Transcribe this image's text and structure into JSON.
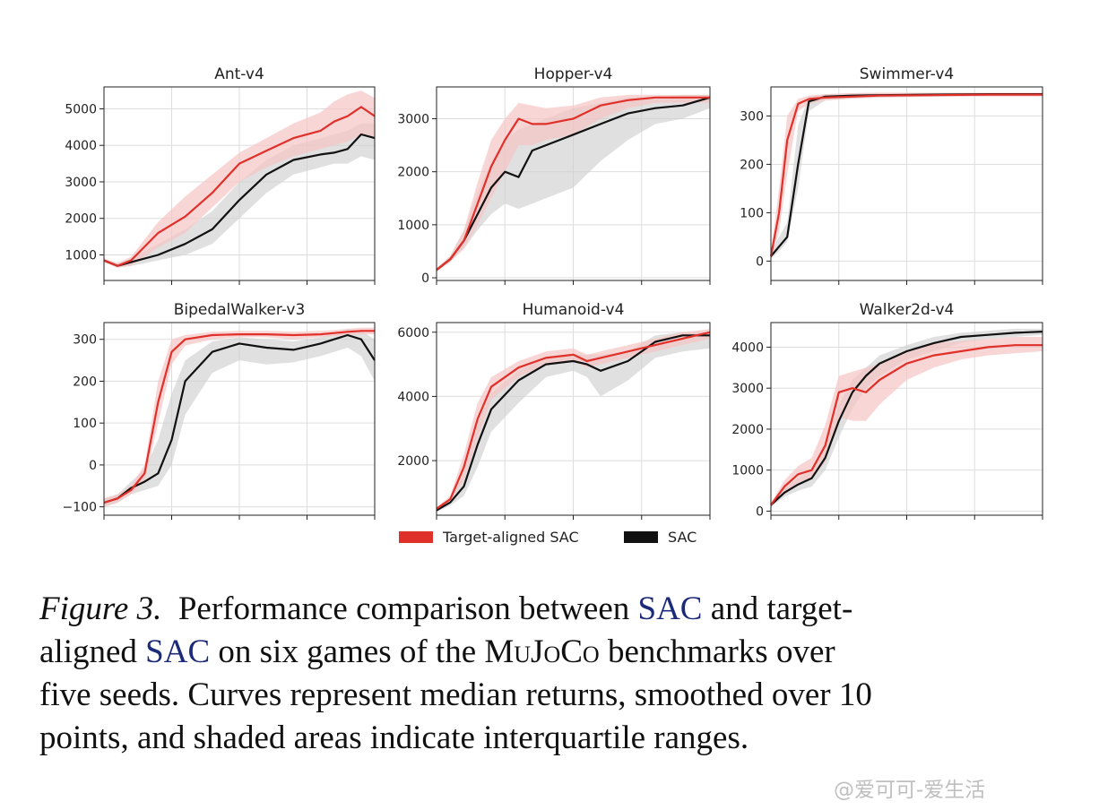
{
  "chart_data": [
    {
      "type": "line",
      "title": "Ant-v4",
      "xlabel": "",
      "ylabel": "",
      "ylim": [
        300,
        5600
      ],
      "yticks": [
        1000,
        2000,
        3000,
        4000,
        5000
      ],
      "ytick_labels": [
        "1000",
        "2000",
        "3000",
        "4000",
        "5000"
      ],
      "x": [
        0,
        0.05,
        0.1,
        0.2,
        0.3,
        0.4,
        0.5,
        0.6,
        0.7,
        0.8,
        0.85,
        0.9,
        0.95,
        1.0
      ],
      "series": [
        {
          "name": "Target-aligned SAC",
          "values": [
            850,
            700,
            850,
            1600,
            2050,
            2700,
            3500,
            3850,
            4200,
            4400,
            4650,
            4800,
            5050,
            4800
          ],
          "low": [
            800,
            650,
            700,
            1200,
            1600,
            2300,
            3000,
            3400,
            3700,
            3900,
            4000,
            4100,
            4300,
            4200
          ],
          "high": [
            900,
            780,
            950,
            1900,
            2600,
            3200,
            3800,
            4200,
            4600,
            4900,
            5200,
            5400,
            5500,
            5300
          ]
        },
        {
          "name": "SAC",
          "values": [
            850,
            700,
            800,
            1000,
            1300,
            1700,
            2500,
            3200,
            3600,
            3750,
            3800,
            3900,
            4300,
            4200
          ],
          "low": [
            800,
            650,
            700,
            850,
            1000,
            1300,
            2000,
            2700,
            3200,
            3400,
            3500,
            3500,
            3700,
            3600
          ],
          "high": [
            900,
            750,
            900,
            1300,
            1700,
            2200,
            3000,
            3600,
            4000,
            4200,
            4300,
            4400,
            4600,
            4600
          ]
        }
      ]
    },
    {
      "type": "line",
      "title": "Hopper-v4",
      "xlabel": "",
      "ylabel": "",
      "ylim": [
        -50,
        3600
      ],
      "yticks": [
        0,
        1000,
        2000,
        3000
      ],
      "ytick_labels": [
        "0",
        "1000",
        "2000",
        "3000"
      ],
      "x": [
        0,
        0.05,
        0.1,
        0.15,
        0.2,
        0.25,
        0.3,
        0.35,
        0.4,
        0.5,
        0.6,
        0.7,
        0.8,
        0.9,
        1.0
      ],
      "series": [
        {
          "name": "Target-aligned SAC",
          "values": [
            150,
            350,
            700,
            1400,
            2100,
            2600,
            3000,
            2900,
            2900,
            3000,
            3250,
            3350,
            3400,
            3400,
            3400
          ],
          "low": [
            120,
            300,
            550,
            1000,
            1500,
            2000,
            2500,
            2500,
            2600,
            2700,
            3000,
            3200,
            3300,
            3300,
            3300
          ],
          "high": [
            180,
            420,
            900,
            1800,
            2600,
            3000,
            3300,
            3250,
            3200,
            3250,
            3400,
            3450,
            3450,
            3450,
            3450
          ]
        },
        {
          "name": "SAC",
          "values": [
            150,
            350,
            700,
            1200,
            1700,
            2000,
            1900,
            2400,
            2500,
            2700,
            2900,
            3100,
            3200,
            3250,
            3400
          ],
          "low": [
            120,
            300,
            550,
            900,
            1200,
            1400,
            1300,
            1400,
            1500,
            1700,
            2200,
            2600,
            2900,
            3000,
            3200
          ],
          "high": [
            180,
            400,
            900,
            1600,
            2200,
            2600,
            2800,
            2900,
            3000,
            3200,
            3300,
            3400,
            3400,
            3450,
            3450
          ]
        }
      ]
    },
    {
      "type": "line",
      "title": "Swimmer-v4",
      "xlabel": "",
      "ylabel": "",
      "ylim": [
        -40,
        360
      ],
      "yticks": [
        0,
        100,
        200,
        300
      ],
      "ytick_labels": [
        "0",
        "100",
        "200",
        "300"
      ],
      "x": [
        0,
        0.03,
        0.06,
        0.1,
        0.14,
        0.2,
        0.3,
        0.4,
        0.6,
        0.8,
        1.0
      ],
      "series": [
        {
          "name": "Target-aligned SAC",
          "values": [
            10,
            100,
            250,
            325,
            335,
            338,
            340,
            342,
            343,
            344,
            344
          ],
          "low": [
            5,
            60,
            180,
            310,
            325,
            332,
            336,
            338,
            340,
            340,
            340
          ],
          "high": [
            20,
            150,
            300,
            335,
            342,
            345,
            347,
            348,
            348,
            348,
            348
          ]
        },
        {
          "name": "SAC",
          "values": [
            10,
            30,
            50,
            200,
            330,
            340,
            342,
            343,
            344,
            345,
            345
          ],
          "low": [
            5,
            20,
            40,
            150,
            310,
            332,
            336,
            338,
            340,
            341,
            341
          ],
          "high": [
            20,
            50,
            80,
            280,
            340,
            345,
            347,
            348,
            348,
            348,
            348
          ]
        }
      ]
    },
    {
      "type": "line",
      "title": "BipedalWalker-v3",
      "xlabel": "",
      "ylabel": "",
      "ylim": [
        -120,
        340
      ],
      "yticks": [
        -100,
        0,
        100,
        200,
        300
      ],
      "ytick_labels": [
        "−100",
        "0",
        "100",
        "200",
        "300"
      ],
      "x": [
        0,
        0.05,
        0.1,
        0.15,
        0.2,
        0.25,
        0.3,
        0.4,
        0.5,
        0.6,
        0.7,
        0.8,
        0.85,
        0.9,
        0.95,
        1.0
      ],
      "series": [
        {
          "name": "Target-aligned SAC",
          "values": [
            -90,
            -80,
            -60,
            -20,
            150,
            270,
            300,
            310,
            312,
            312,
            310,
            312,
            315,
            318,
            320,
            320
          ],
          "low": [
            -100,
            -90,
            -70,
            -40,
            100,
            240,
            285,
            300,
            305,
            305,
            300,
            305,
            308,
            310,
            312,
            312
          ],
          "high": [
            -80,
            -70,
            -50,
            0,
            200,
            300,
            310,
            318,
            320,
            320,
            318,
            320,
            322,
            325,
            328,
            328
          ]
        },
        {
          "name": "SAC",
          "values": [
            -90,
            -80,
            -55,
            -40,
            -20,
            60,
            200,
            270,
            290,
            280,
            275,
            290,
            300,
            310,
            300,
            250
          ],
          "low": [
            -100,
            -90,
            -70,
            -60,
            -50,
            0,
            120,
            220,
            250,
            240,
            245,
            260,
            270,
            280,
            260,
            200
          ],
          "high": [
            -80,
            -70,
            -40,
            -10,
            60,
            170,
            250,
            295,
            305,
            300,
            295,
            305,
            315,
            325,
            320,
            300
          ]
        }
      ]
    },
    {
      "type": "line",
      "title": "Humanoid-v4",
      "xlabel": "",
      "ylabel": "",
      "ylim": [
        300,
        6300
      ],
      "yticks": [
        2000,
        4000,
        6000
      ],
      "ytick_labels": [
        "2000",
        "4000",
        "6000"
      ],
      "x": [
        0,
        0.05,
        0.1,
        0.15,
        0.2,
        0.3,
        0.4,
        0.5,
        0.55,
        0.6,
        0.7,
        0.8,
        0.9,
        1.0
      ],
      "series": [
        {
          "name": "Target-aligned SAC",
          "values": [
            500,
            800,
            1800,
            3300,
            4300,
            4900,
            5200,
            5300,
            5100,
            5200,
            5400,
            5600,
            5800,
            6000
          ],
          "low": [
            450,
            700,
            1400,
            2700,
            3900,
            4600,
            5000,
            5100,
            4900,
            5000,
            5200,
            5400,
            5600,
            5800
          ],
          "high": [
            550,
            900,
            2200,
            3800,
            4600,
            5100,
            5400,
            5500,
            5300,
            5400,
            5600,
            5800,
            6000,
            6100
          ]
        },
        {
          "name": "SAC",
          "values": [
            450,
            700,
            1200,
            2500,
            3600,
            4500,
            5000,
            5100,
            5000,
            4800,
            5100,
            5700,
            5900,
            5900
          ],
          "low": [
            400,
            600,
            900,
            1800,
            2900,
            3800,
            4600,
            4800,
            4600,
            4000,
            4500,
            5200,
            5400,
            5500
          ],
          "high": [
            500,
            800,
            1600,
            3200,
            4100,
            4800,
            5200,
            5300,
            5300,
            5300,
            5400,
            5900,
            6000,
            6000
          ]
        }
      ]
    },
    {
      "type": "line",
      "title": "Walker2d-v4",
      "xlabel": "",
      "ylabel": "",
      "ylim": [
        -100,
        4600
      ],
      "yticks": [
        0,
        1000,
        2000,
        3000,
        4000
      ],
      "ytick_labels": [
        "0",
        "1000",
        "2000",
        "3000",
        "4000"
      ],
      "x": [
        0,
        0.05,
        0.1,
        0.15,
        0.2,
        0.25,
        0.3,
        0.35,
        0.4,
        0.5,
        0.6,
        0.7,
        0.8,
        0.9,
        1.0
      ],
      "series": [
        {
          "name": "Target-aligned SAC",
          "values": [
            150,
            600,
            900,
            1000,
            1600,
            2900,
            3000,
            2900,
            3200,
            3600,
            3800,
            3900,
            4000,
            4050,
            4050
          ],
          "low": [
            100,
            450,
            700,
            800,
            1200,
            2300,
            2200,
            2200,
            2600,
            3200,
            3500,
            3700,
            3800,
            3850,
            3900
          ],
          "high": [
            200,
            750,
            1100,
            1300,
            2100,
            3300,
            3400,
            3500,
            3600,
            3900,
            4100,
            4150,
            4200,
            4250,
            4250
          ]
        },
        {
          "name": "SAC",
          "values": [
            150,
            450,
            650,
            800,
            1300,
            2200,
            2900,
            3300,
            3600,
            3900,
            4100,
            4250,
            4300,
            4350,
            4380
          ],
          "low": [
            100,
            350,
            500,
            600,
            1000,
            1800,
            2500,
            3000,
            3300,
            3700,
            3900,
            4100,
            4200,
            4250,
            4300
          ],
          "high": [
            200,
            550,
            800,
            1000,
            1700,
            2600,
            3200,
            3500,
            3800,
            4050,
            4250,
            4350,
            4400,
            4450,
            4450
          ]
        }
      ]
    }
  ],
  "legend": {
    "items": [
      {
        "label": "Target-aligned SAC",
        "color": "#e0302a"
      },
      {
        "label": "SAC",
        "color": "#111111"
      }
    ]
  },
  "colors": {
    "target": "#e0302a",
    "target_fill": "#f6c4c4",
    "sac": "#111111",
    "sac_fill": "#cfcfcf",
    "grid": "#dddddd",
    "link": "#1c2a7a"
  },
  "caption": {
    "label": "Figure 3.",
    "line1_a": "Performance comparison between",
    "link1": "SAC",
    "line1_b": "and target-",
    "line2_a": "aligned",
    "link2": "SAC",
    "line2_b": "on six games of the",
    "mujoco": "MuJoCo",
    "line2_c": "benchmarks over",
    "line3": "five seeds.  Curves represent median returns, smoothed over 10",
    "line4": "points, and shaded areas indicate interquartile ranges."
  },
  "watermark": "@爱可可-爱生活"
}
